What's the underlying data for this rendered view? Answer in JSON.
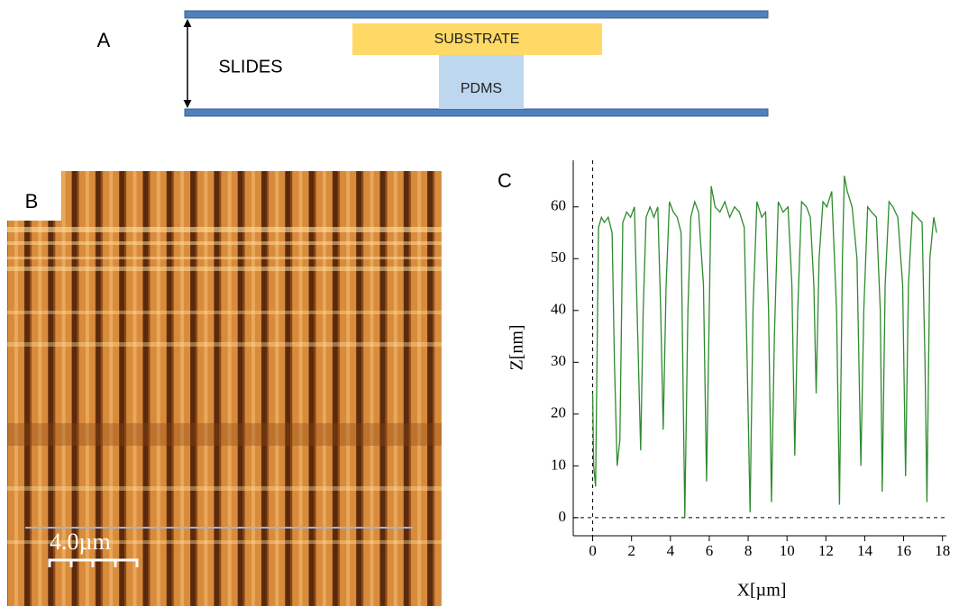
{
  "panel_a": {
    "label": "A",
    "slides_label": "SLIDES",
    "substrate_label": "SUBSTRATE",
    "pdms_label": "PDMS"
  },
  "panel_b": {
    "label": "B",
    "scale_bar_label": "4.0µm"
  },
  "chart_data": {
    "type": "line",
    "label": "C",
    "x_label": "X[µm]",
    "y_label": "Z[nm]",
    "x": [
      0,
      0.05,
      0.15,
      0.3,
      0.45,
      0.6,
      0.8,
      1.0,
      1.12,
      1.26,
      1.4,
      1.55,
      1.75,
      1.95,
      2.15,
      2.32,
      2.47,
      2.6,
      2.75,
      2.95,
      3.15,
      3.35,
      3.5,
      3.63,
      3.78,
      3.95,
      4.15,
      4.35,
      4.55,
      4.74,
      4.9,
      5.05,
      5.25,
      5.45,
      5.7,
      5.86,
      6.0,
      6.1,
      6.3,
      6.55,
      6.8,
      7.05,
      7.3,
      7.55,
      7.8,
      7.95,
      8.1,
      8.25,
      8.45,
      8.7,
      8.9,
      9.05,
      9.2,
      9.35,
      9.55,
      9.8,
      10.05,
      10.25,
      10.4,
      10.55,
      10.75,
      11.0,
      11.2,
      11.38,
      11.5,
      11.65,
      11.85,
      12.05,
      12.3,
      12.55,
      12.7,
      12.85,
      12.95,
      13.1,
      13.35,
      13.6,
      13.8,
      13.95,
      14.15,
      14.35,
      14.6,
      14.8,
      14.9,
      15.05,
      15.25,
      15.45,
      15.7,
      15.95,
      16.1,
      16.25,
      16.45,
      16.7,
      16.95,
      17.1,
      17.2,
      17.35,
      17.55,
      17.7
    ],
    "series": [
      {
        "color": "#2e8b2e",
        "values": [
          24,
          10,
          6,
          56,
          58,
          57,
          58,
          55,
          30,
          10,
          15,
          57,
          59,
          58,
          60,
          35,
          13,
          40,
          58,
          60,
          58,
          60,
          40,
          17,
          45,
          61,
          59,
          58,
          55,
          0,
          40,
          58,
          61,
          59,
          45,
          7,
          40,
          64,
          60,
          59,
          61,
          58,
          60,
          59,
          56,
          30,
          1,
          40,
          61,
          58,
          59,
          40,
          3,
          35,
          61,
          59,
          60,
          45,
          12,
          40,
          61,
          60,
          58,
          45,
          24,
          50,
          61,
          60,
          63,
          40,
          2.5,
          50,
          66,
          63,
          60,
          50,
          10,
          40,
          60,
          59,
          58,
          40,
          5,
          45,
          61,
          60,
          58,
          45,
          8,
          45,
          59,
          58,
          57,
          30,
          3,
          50,
          58,
          55
        ]
      }
    ],
    "xlim": [
      -1,
      18.2
    ],
    "ylim": [
      -3.5,
      69
    ],
    "xticks": [
      0,
      2,
      4,
      6,
      8,
      10,
      12,
      14,
      16,
      18
    ],
    "yticks": [
      0,
      10,
      20,
      30,
      40,
      50,
      60
    ]
  }
}
